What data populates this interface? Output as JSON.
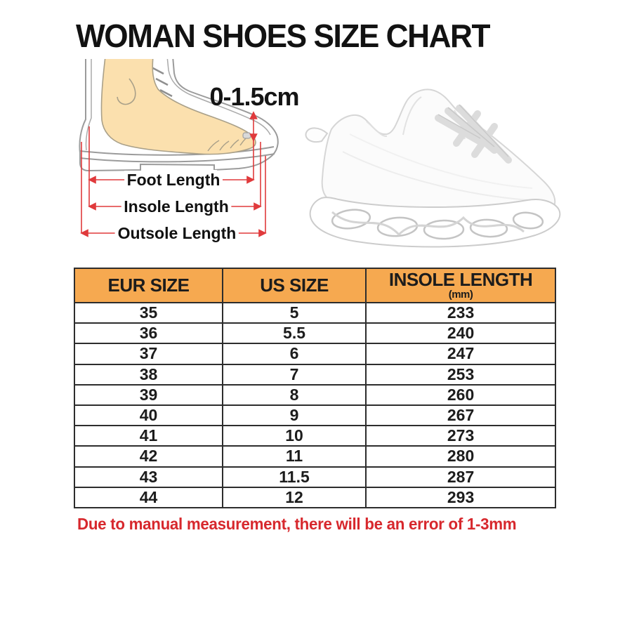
{
  "page": {
    "title": "WOMAN SHOES SIZE CHART",
    "note": "Due to manual measurement, there will be an error of 1-3mm"
  },
  "diagram": {
    "toe_gap": "0-1.5cm",
    "labels": {
      "foot": "Foot Length",
      "insole": "Insole Length",
      "outsole": "Outsole Length"
    }
  },
  "table": {
    "headers": [
      {
        "label": "EUR SIZE",
        "sub": ""
      },
      {
        "label": "US SIZE",
        "sub": ""
      },
      {
        "label": "INSOLE  LENGTH",
        "sub": "(mm)"
      }
    ],
    "rows": [
      [
        "35",
        "5",
        "233"
      ],
      [
        "36",
        "5.5",
        "240"
      ],
      [
        "37",
        "6",
        "247"
      ],
      [
        "38",
        "7",
        "253"
      ],
      [
        "39",
        "8",
        "260"
      ],
      [
        "40",
        "9",
        "267"
      ],
      [
        "41",
        "10",
        "273"
      ],
      [
        "42",
        "11",
        "280"
      ],
      [
        "43",
        "11.5",
        "287"
      ],
      [
        "44",
        "12",
        "293"
      ]
    ]
  },
  "colors": {
    "header_bg": "#F6A950",
    "table_border": "#2d2d2d",
    "accent_red": "#D7282D",
    "measure_red": "#E03A3C",
    "foot_skin": "#FBE0AE",
    "outline_gray": "#9B9B9B"
  },
  "chart_data": {
    "type": "table",
    "title": "WOMAN SHOES SIZE CHART",
    "columns": [
      "EUR SIZE",
      "US SIZE",
      "INSOLE LENGTH (mm)"
    ],
    "rows": [
      [
        "35",
        "5",
        "233"
      ],
      [
        "36",
        "5.5",
        "240"
      ],
      [
        "37",
        "6",
        "247"
      ],
      [
        "38",
        "7",
        "253"
      ],
      [
        "39",
        "8",
        "260"
      ],
      [
        "40",
        "9",
        "267"
      ],
      [
        "41",
        "10",
        "273"
      ],
      [
        "42",
        "11",
        "280"
      ],
      [
        "43",
        "11.5",
        "287"
      ],
      [
        "44",
        "12",
        "293"
      ]
    ],
    "annotations": [
      "0-1.5cm toe gap",
      "Foot Length",
      "Insole Length",
      "Outsole Length",
      "Due to manual measurement, there will be an error of 1-3mm"
    ]
  }
}
